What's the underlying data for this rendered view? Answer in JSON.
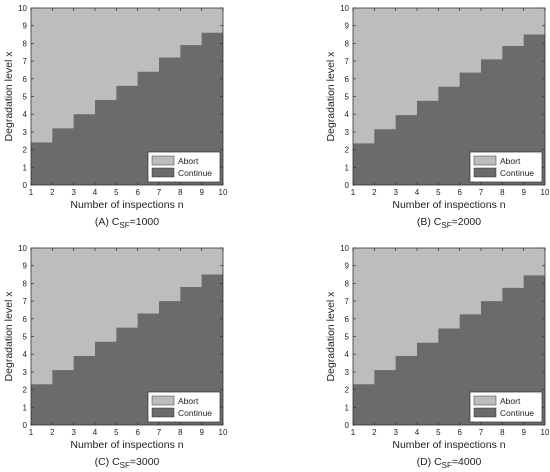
{
  "colors": {
    "abort": "#bdbdbd",
    "continue": "#6b6b6b",
    "axis": "#333333"
  },
  "chart_data": [
    {
      "type": "area",
      "caption_prefix": "(A) C",
      "caption_sub": "SF",
      "caption_value": "=1000",
      "xlabel": "Number of inspections n",
      "ylabel": "Degradation level x",
      "xlim": [
        1,
        10
      ],
      "ylim": [
        0,
        10
      ],
      "xticks": [
        "1",
        "2",
        "3",
        "4",
        "5",
        "6",
        "7",
        "8",
        "9",
        "10"
      ],
      "yticks": [
        "0",
        "1",
        "2",
        "3",
        "4",
        "5",
        "6",
        "7",
        "8",
        "9",
        "10"
      ],
      "legend": {
        "position": "bottom-right",
        "entries": [
          "Abort",
          "Continue"
        ]
      },
      "series": [
        {
          "name": "Continue",
          "x": [
            1,
            2,
            3,
            4,
            5,
            6,
            7,
            8,
            9,
            10
          ],
          "threshold": [
            2.4,
            3.2,
            4.0,
            4.8,
            5.6,
            6.4,
            7.2,
            7.9,
            8.6,
            8.6
          ]
        }
      ]
    },
    {
      "type": "area",
      "caption_prefix": "(B) C",
      "caption_sub": "SF",
      "caption_value": "=2000",
      "xlabel": "Number of inspections n",
      "ylabel": "Degradation level x",
      "xlim": [
        1,
        10
      ],
      "ylim": [
        0,
        10
      ],
      "xticks": [
        "1",
        "2",
        "3",
        "4",
        "5",
        "6",
        "7",
        "8",
        "9",
        "10"
      ],
      "yticks": [
        "0",
        "1",
        "2",
        "3",
        "4",
        "5",
        "6",
        "7",
        "8",
        "9",
        "10"
      ],
      "legend": {
        "position": "bottom-right",
        "entries": [
          "Abort",
          "Continue"
        ]
      },
      "series": [
        {
          "name": "Continue",
          "x": [
            1,
            2,
            3,
            4,
            5,
            6,
            7,
            8,
            9,
            10
          ],
          "threshold": [
            2.35,
            3.15,
            3.95,
            4.75,
            5.55,
            6.35,
            7.1,
            7.85,
            8.5,
            8.5
          ]
        }
      ]
    },
    {
      "type": "area",
      "caption_prefix": "(C) C",
      "caption_sub": "SF",
      "caption_value": "=3000",
      "xlabel": "Number of inspections n",
      "ylabel": "Degradation level x",
      "xlim": [
        1,
        10
      ],
      "ylim": [
        0,
        10
      ],
      "xticks": [
        "1",
        "2",
        "3",
        "4",
        "5",
        "6",
        "7",
        "8",
        "9",
        "10"
      ],
      "yticks": [
        "0",
        "1",
        "2",
        "3",
        "4",
        "5",
        "6",
        "7",
        "8",
        "9",
        "10"
      ],
      "legend": {
        "position": "bottom-right",
        "entries": [
          "Abort",
          "Continue"
        ]
      },
      "series": [
        {
          "name": "Continue",
          "x": [
            1,
            2,
            3,
            4,
            5,
            6,
            7,
            8,
            9,
            10
          ],
          "threshold": [
            2.3,
            3.1,
            3.9,
            4.7,
            5.5,
            6.3,
            7.0,
            7.8,
            8.5,
            8.5
          ]
        }
      ]
    },
    {
      "type": "area",
      "caption_prefix": "(D) C",
      "caption_sub": "SF",
      "caption_value": "=4000",
      "xlabel": "Number of inspections n",
      "ylabel": "Degradation level x",
      "xlim": [
        1,
        10
      ],
      "ylim": [
        0,
        10
      ],
      "xticks": [
        "1",
        "2",
        "3",
        "4",
        "5",
        "6",
        "7",
        "8",
        "9",
        "10"
      ],
      "yticks": [
        "0",
        "1",
        "2",
        "3",
        "4",
        "5",
        "6",
        "7",
        "8",
        "9",
        "10"
      ],
      "legend": {
        "position": "bottom-right",
        "entries": [
          "Abort",
          "Continue"
        ]
      },
      "series": [
        {
          "name": "Continue",
          "x": [
            1,
            2,
            3,
            4,
            5,
            6,
            7,
            8,
            9,
            10
          ],
          "threshold": [
            2.3,
            3.1,
            3.9,
            4.65,
            5.45,
            6.25,
            7.0,
            7.75,
            8.45,
            8.45
          ]
        }
      ]
    }
  ]
}
